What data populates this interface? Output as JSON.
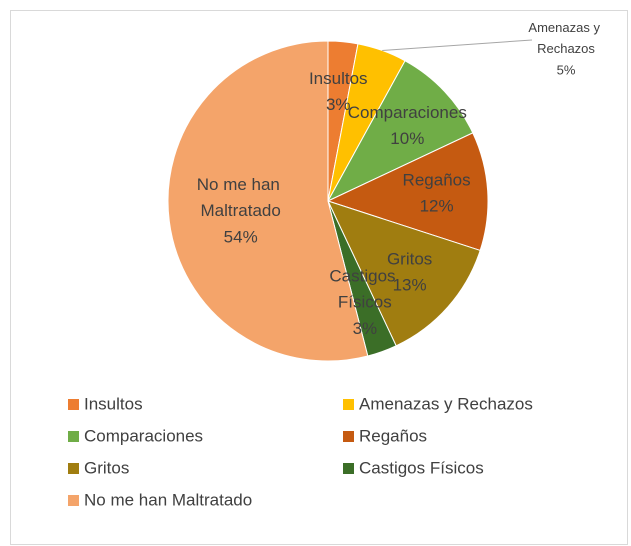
{
  "chart_data": {
    "type": "pie",
    "categories": [
      "Insultos",
      "Amenazas y Rechazos",
      "Comparaciones",
      "Regaños",
      "Gritos",
      "Castigos Físicos",
      "No me han Maltratado"
    ],
    "values": [
      3,
      5,
      10,
      12,
      13,
      3,
      54
    ],
    "value_labels": [
      "3%",
      "5%",
      "10%",
      "12%",
      "13%",
      "3%",
      "54%"
    ],
    "colors": [
      "#ED7D31",
      "#FFC000",
      "#70AD47",
      "#C55A11",
      "#A07D10",
      "#3B6E27",
      "#F4A46A"
    ],
    "legend": "bottom"
  }
}
